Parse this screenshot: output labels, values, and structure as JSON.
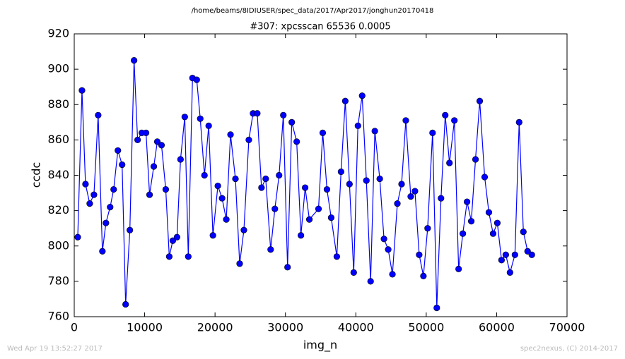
{
  "chart_data": {
    "type": "line",
    "suptitle": "/home/beams/8IDIUSER/spec_data/2017/Apr2017/jonghun20170418",
    "title": "#307: xpcsscan 65536 0.0005",
    "xlabel": "img_n",
    "ylabel": "ccdc",
    "footer_left": "Wed Apr 19 13:52:27 2017",
    "footer_right": "spec2nexus, (C) 2014-2017",
    "x": [
      500,
      1100,
      1600,
      2200,
      2800,
      3400,
      4000,
      4500,
      5100,
      5600,
      6200,
      6800,
      7300,
      7900,
      8500,
      9000,
      9600,
      10200,
      10700,
      11300,
      11800,
      12400,
      13000,
      13500,
      14000,
      14600,
      15100,
      15700,
      16200,
      16800,
      17400,
      17900,
      18500,
      19100,
      19700,
      20400,
      21000,
      21600,
      22200,
      22900,
      23500,
      24100,
      24800,
      25400,
      26000,
      26600,
      27200,
      27900,
      28500,
      29100,
      29700,
      30300,
      30900,
      31600,
      32200,
      32800,
      33400,
      34700,
      35300,
      35900,
      36500,
      37300,
      37900,
      38500,
      39100,
      39700,
      40300,
      40900,
      41500,
      42100,
      42700,
      43400,
      44000,
      44600,
      45200,
      45900,
      46500,
      47100,
      47800,
      48400,
      49000,
      49600,
      50200,
      50900,
      51500,
      52100,
      52700,
      53300,
      54000,
      54600,
      55200,
      55800,
      56400,
      57000,
      57600,
      58300,
      58900,
      59500,
      60100,
      60700,
      61300,
      61900,
      62600,
      63200,
      63800,
      64400,
      65000
    ],
    "series": [
      {
        "name": "ccdc",
        "color": "#0000ff",
        "values": [
          805,
          888,
          835,
          824,
          829,
          874,
          797,
          813,
          822,
          832,
          854,
          846,
          767,
          809,
          905,
          860,
          864,
          864,
          829,
          845,
          859,
          857,
          832,
          794,
          803,
          805,
          849,
          873,
          794,
          895,
          894,
          872,
          840,
          868,
          806,
          834,
          827,
          815,
          863,
          838,
          790,
          809,
          860,
          875,
          875,
          833,
          838,
          798,
          821,
          840,
          874,
          788,
          870,
          859,
          806,
          833,
          815,
          821,
          864,
          832,
          816,
          794,
          842,
          882,
          835,
          785,
          868,
          885,
          837,
          780,
          865,
          838,
          804,
          798,
          784,
          824,
          835,
          871,
          828,
          831,
          795,
          783,
          810,
          864,
          765,
          827,
          874,
          847,
          871,
          787,
          807,
          825,
          814,
          849,
          882,
          839,
          819,
          807,
          813,
          792,
          795,
          785,
          795,
          870,
          808,
          797,
          795
        ]
      }
    ],
    "xlim": [
      0,
      70000
    ],
    "ylim": [
      760,
      920
    ],
    "xticks": [
      0,
      10000,
      20000,
      30000,
      40000,
      50000,
      60000,
      70000
    ],
    "yticks": [
      760,
      780,
      800,
      820,
      840,
      860,
      880,
      900,
      920
    ]
  }
}
